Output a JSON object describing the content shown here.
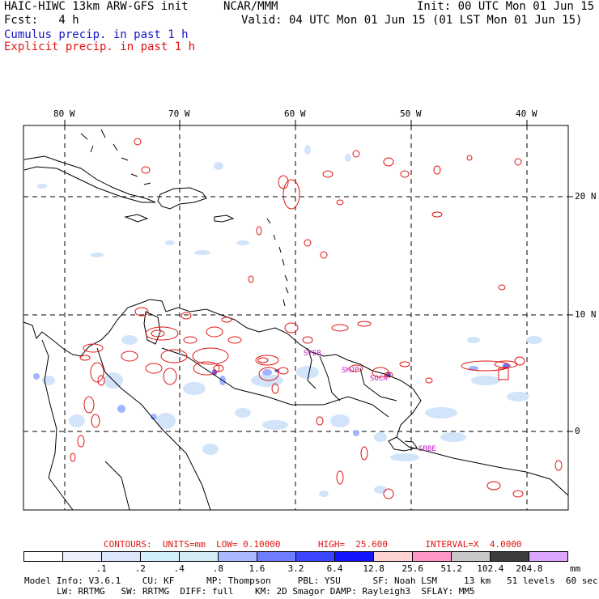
{
  "header": {
    "title": "HAIC-HIWC 13km ARW-GFS init",
    "org": "NCAR/MMM",
    "init": "Init: 00 UTC Mon 01 Jun 15",
    "fcst": "Fcst:   4 h",
    "valid": "Valid: 04 UTC Mon 01 Jun 15 (01 LST Mon 01 Jun 15)",
    "legend_cumulus": "Cumulus precip. in past 1 h",
    "legend_explicit": "Explicit precip. in past 1 h"
  },
  "axes": {
    "lon_labels": [
      "80 W",
      "70 W",
      "60 W",
      "50 W",
      "40 W"
    ],
    "lat_labels": [
      "20 N",
      "10 N",
      "0"
    ]
  },
  "map_labels": [
    "SBBE",
    "SOCA",
    "SMJP",
    "SYEB"
  ],
  "colors": {
    "explicit": "#e01414",
    "cumulus_light": "#d2e4fa",
    "cumulus_mid": "#a0b4ff",
    "cumulus_dark": "#6470ff",
    "station": "#c814c8",
    "coast": "#000000"
  },
  "contours": "CONTOURS:  UNITS=mm  LOW= 0.10000       HIGH=  25.600       INTERVAL=X  4.0000",
  "colorbar": {
    "unit": "mm",
    "labels": [
      ".1",
      ".2",
      ".4",
      ".8",
      "1.6",
      "3.2",
      "6.4",
      "12.8",
      "25.6",
      "51.2",
      "102.4",
      "204.8"
    ],
    "colors": [
      "#ffffff",
      "#ebf0fa",
      "#dce6fa",
      "#d2f0fa",
      "#d2ebf5",
      "#aab9ff",
      "#6e7dff",
      "#3c46ff",
      "#1414ff",
      "#ffd2d2",
      "#ff96c8",
      "#c8c8c8",
      "#3c3c3c",
      "#dca5ff"
    ]
  },
  "footer": {
    "line1": "Model Info: V3.6.1    CU: KF      MP: Thompson     PBL: YSU      SF: Noah LSM     13 km   51 levels  60 sec",
    "line2": "LW: RRTMG   SW: RRTMG  DIFF: full    KM: 2D Smagor DAMP: Rayleigh3  SFLAY: MM5"
  }
}
